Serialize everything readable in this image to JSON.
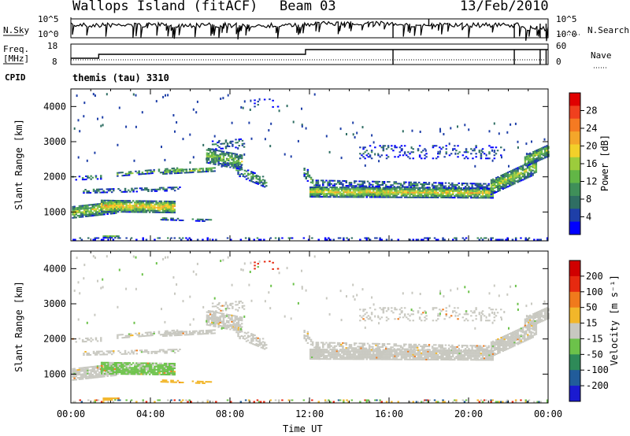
{
  "header": {
    "site": "Wallops Island (fitACF)",
    "beam": "Beam 03",
    "date": "13/Feb/2010"
  },
  "strip": {
    "nsky_label": "N.Sky",
    "nsky_ticks": [
      "10^5",
      "10^0"
    ],
    "nsearch_label": "N.Search",
    "nsearch_ticks": [
      "10^5",
      "10^0"
    ],
    "freq_label": "Freq.",
    "freq_unit": "[MHz]",
    "freq_ticks": [
      "18",
      "8"
    ],
    "nave_label": "Nave",
    "nave_ticks": [
      "60",
      "0"
    ],
    "cpid_label": "CPID",
    "cpid_value": "themis (tau) 3310"
  },
  "chart_data": [
    {
      "type": "heatmap",
      "name": "power",
      "ylabel": "Slant Range [km]",
      "yticks": [
        1000,
        2000,
        3000,
        4000
      ],
      "ylim": [
        180,
        4500
      ],
      "xlim_hours": [
        0,
        24
      ],
      "colorbar_label": "Power [dB]",
      "colorbar_ticks": [
        "28",
        "24",
        "20",
        "16",
        "12",
        "8",
        "4"
      ],
      "colorbar_colors": [
        "#0000ff",
        "#1e3fa8",
        "#2f6e63",
        "#3f8f59",
        "#62b646",
        "#9ccc3c",
        "#f2d02a",
        "#f4a62a",
        "#f57a22",
        "#f0401e",
        "#e00000"
      ],
      "colorbar_range": [
        0,
        32
      ]
    },
    {
      "type": "heatmap",
      "name": "velocity",
      "ylabel": "Slant Range [km]",
      "yticks": [
        1000,
        2000,
        3000,
        4000
      ],
      "ylim": [
        180,
        4500
      ],
      "xlim_hours": [
        0,
        24
      ],
      "xlabel": "Time UT",
      "xticks": [
        "00:00",
        "04:00",
        "08:00",
        "12:00",
        "16:00",
        "20:00",
        "00:00"
      ],
      "colorbar_label": "Velocity [m s⁻¹]",
      "colorbar_ticks": [
        "200",
        "100",
        "50",
        "15",
        "-15",
        "-50",
        "-100",
        "-200"
      ],
      "colorbar_colors": [
        "#1a1ad0",
        "#215c9a",
        "#2e8a58",
        "#6cc24a",
        "#c8c8c0",
        "#f2b62a",
        "#f07a1c",
        "#e62a10",
        "#d00000"
      ]
    }
  ]
}
